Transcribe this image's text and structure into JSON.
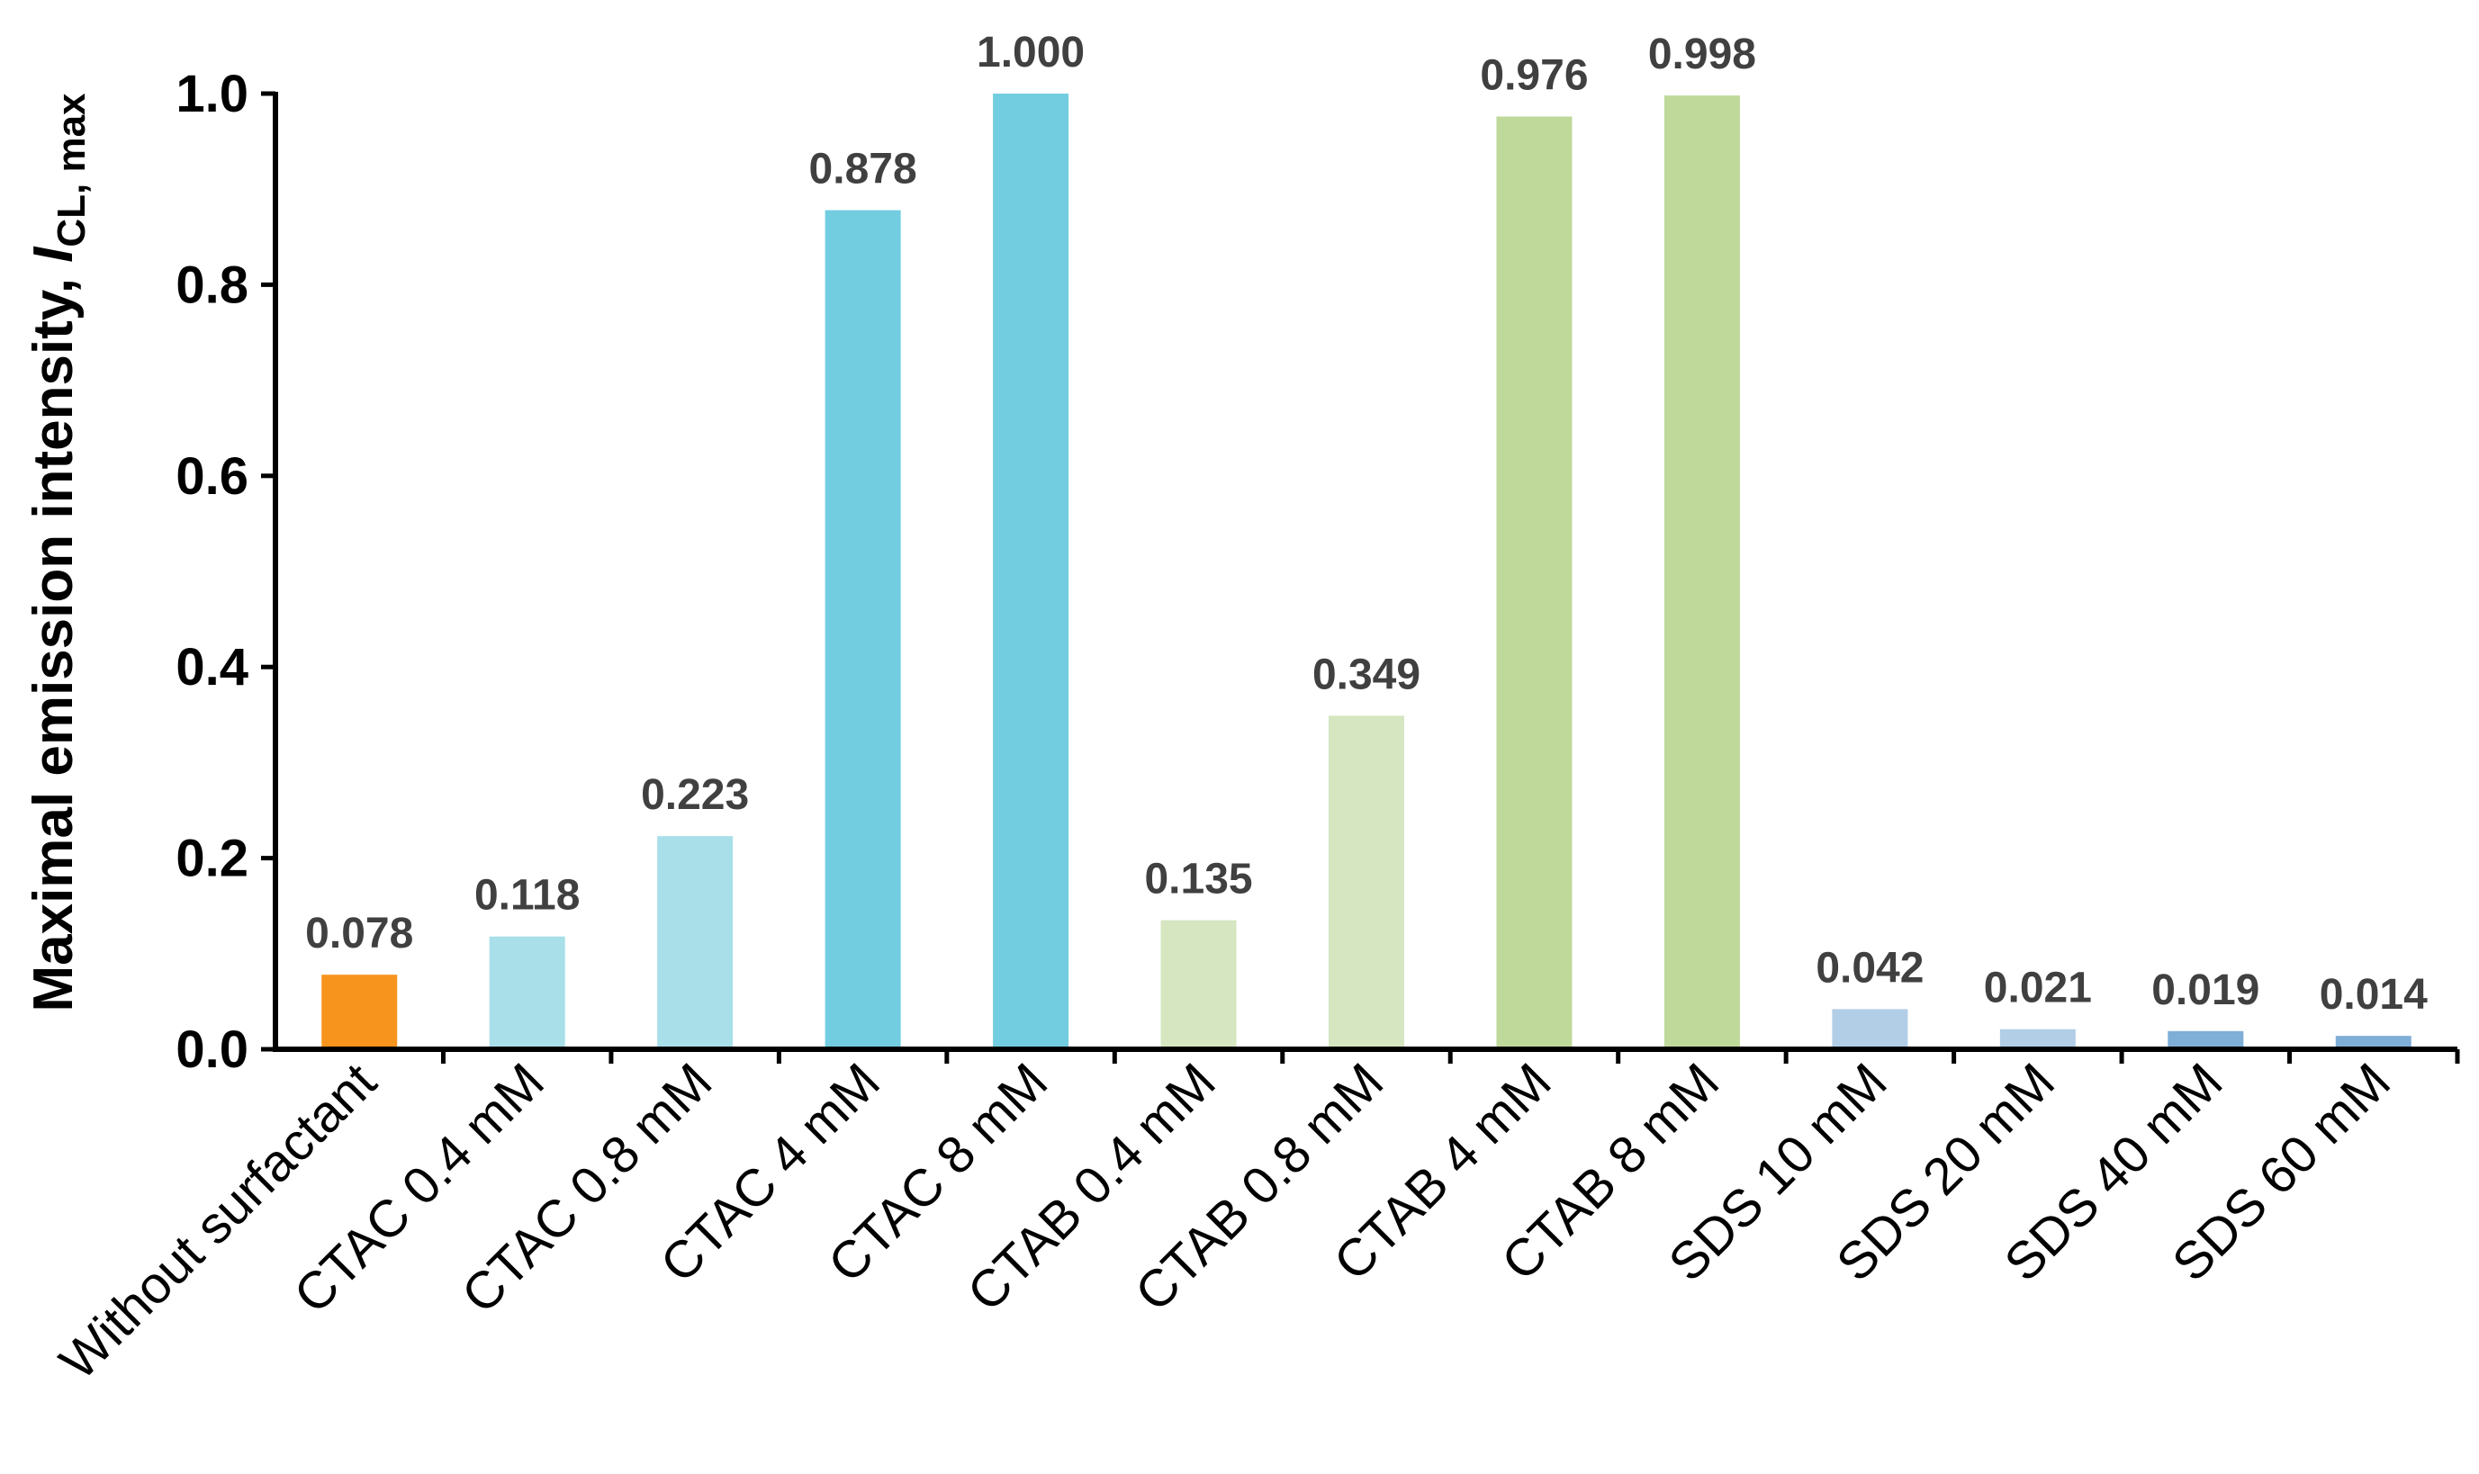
{
  "chart_data": {
    "type": "bar",
    "title": "",
    "xlabel": "",
    "ylabel": {
      "main": "Maximal emission intensity, ",
      "italic": "I",
      "subscript": "CL, max"
    },
    "ylim": [
      0,
      1.0
    ],
    "yticks": [
      "0.0",
      "0.2",
      "0.4",
      "0.6",
      "0.8",
      "1.0"
    ],
    "grid": false,
    "legend": "none",
    "categories": [
      "Without surfactant",
      "CTAC 0.4 mM",
      "CTAC 0.8 mM",
      "CTAC 4 mM",
      "CTAC 8 mM",
      "CTAB 0.4 mM",
      "CTAB 0.8 mM",
      "CTAB 4 mM",
      "CTAB 8 mM",
      "SDS 10 mM",
      "SDS 20 mM",
      "SDS 40 mM",
      "SDS 60 mM"
    ],
    "values": [
      0.078,
      0.118,
      0.223,
      0.878,
      1.0,
      0.135,
      0.349,
      0.976,
      0.998,
      0.042,
      0.021,
      0.019,
      0.014
    ],
    "data_labels": [
      "0.078",
      "0.118",
      "0.223",
      "0.878",
      "1.000",
      "0.135",
      "0.349",
      "0.976",
      "0.998",
      "0.042",
      "0.021",
      "0.019",
      "0.014"
    ],
    "colors": [
      "#F7941D",
      "#A8DFE9",
      "#A8DFE9",
      "#73CDE0",
      "#73CDE0",
      "#D5E6C1",
      "#D5E6C1",
      "#BFD99B",
      "#BFD99B",
      "#B2CEE6",
      "#B2CEE6",
      "#7FAED6",
      "#7FAED6"
    ]
  }
}
